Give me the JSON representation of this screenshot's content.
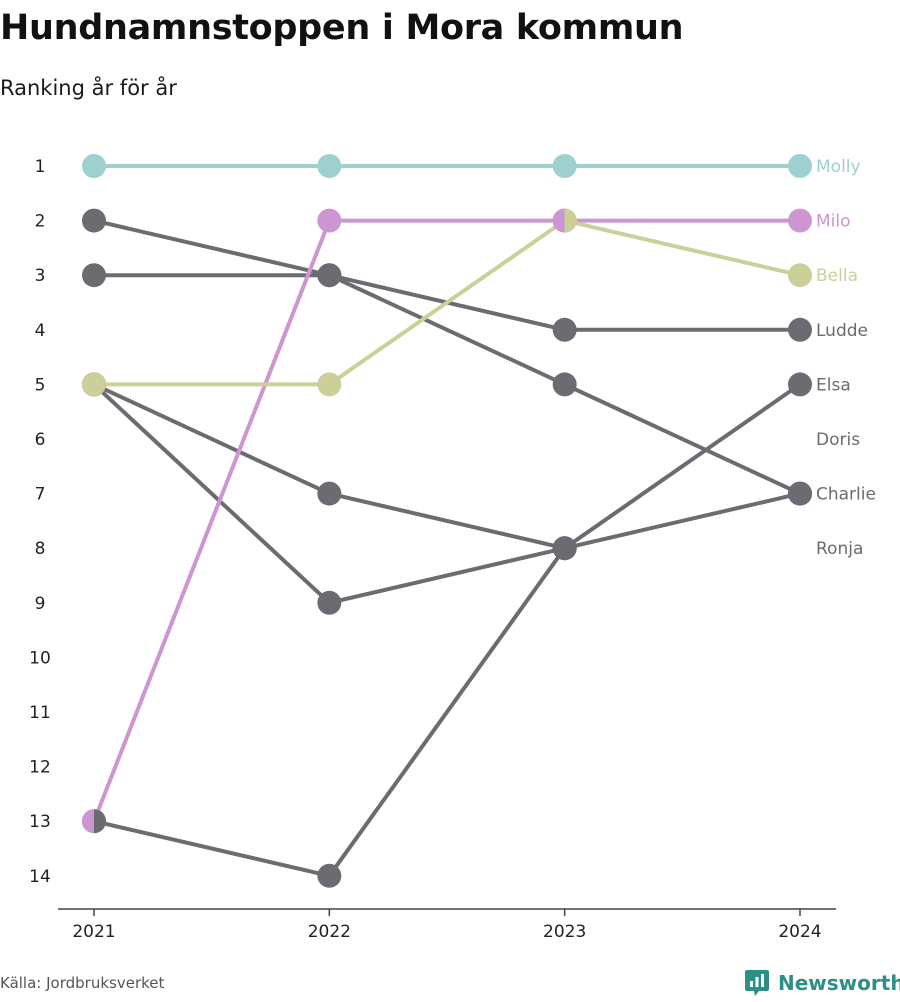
{
  "title": "Hundnamnstoppen i Mora kommun",
  "subtitle": "Ranking år för år",
  "source": "Källa: Jordbruksverket",
  "brand": "Newsworthy",
  "colors": {
    "Molly": "#9dd0cf",
    "Milo": "#cd96d2",
    "Bella": "#cdcf99",
    "other": "#6b6b72",
    "axis": "#444444",
    "brand": "#2d8f88"
  },
  "chart_data": {
    "type": "line",
    "title": "Hundnamnstoppen i Mora kommun",
    "subtitle": "Ranking år för år",
    "x": [
      "2021",
      "2022",
      "2023",
      "2024"
    ],
    "y_ticks": [
      "1",
      "2",
      "3",
      "4",
      "5",
      "6",
      "7",
      "8",
      "9",
      "10",
      "11",
      "12",
      "13",
      "14"
    ],
    "ylim": [
      1,
      14
    ],
    "y_reversed": true,
    "grid": false,
    "series": [
      {
        "name": "Molly",
        "values": [
          1,
          1,
          1,
          1
        ],
        "highlight": true
      },
      {
        "name": "Milo",
        "values": [
          13,
          2,
          2,
          2
        ],
        "highlight": true
      },
      {
        "name": "Bella",
        "values": [
          5,
          5,
          2,
          3
        ],
        "highlight": true
      },
      {
        "name": "Ludde",
        "values": [
          3,
          3,
          4,
          4
        ],
        "highlight": false
      },
      {
        "name": "Elsa",
        "values": [
          13,
          14,
          8,
          5
        ],
        "highlight": false
      },
      {
        "name": "Doris",
        "values": [
          null,
          null,
          null,
          null
        ],
        "highlight": false
      },
      {
        "name": "Charlie",
        "values": [
          2,
          3,
          5,
          7
        ],
        "highlight": false
      },
      {
        "name": "Ronja",
        "values": [
          null,
          null,
          null,
          null
        ],
        "highlight": false
      },
      {
        "name": "",
        "values": [
          5,
          7,
          8,
          7
        ],
        "highlight": false
      },
      {
        "name": "",
        "values": [
          5,
          9,
          8,
          null
        ],
        "highlight": false
      }
    ],
    "end_labels": [
      {
        "text": "Molly",
        "rank": 1,
        "color_key": "Molly"
      },
      {
        "text": "Milo",
        "rank": 2,
        "color_key": "Milo"
      },
      {
        "text": "Bella",
        "rank": 3,
        "color_key": "Bella"
      },
      {
        "text": "Ludde",
        "rank": 4,
        "color_key": "other"
      },
      {
        "text": "Elsa",
        "rank": 5,
        "color_key": "other"
      },
      {
        "text": "Doris",
        "rank": 6,
        "color_key": "other"
      },
      {
        "text": "Charlie",
        "rank": 7,
        "color_key": "other"
      },
      {
        "text": "Ronja",
        "rank": 8,
        "color_key": "other"
      }
    ],
    "split_markers": [
      {
        "year": "2021",
        "rank": 13,
        "left": "Milo",
        "right": "other"
      },
      {
        "year": "2023",
        "rank": 2,
        "left": "Milo",
        "right": "Bella"
      }
    ]
  }
}
